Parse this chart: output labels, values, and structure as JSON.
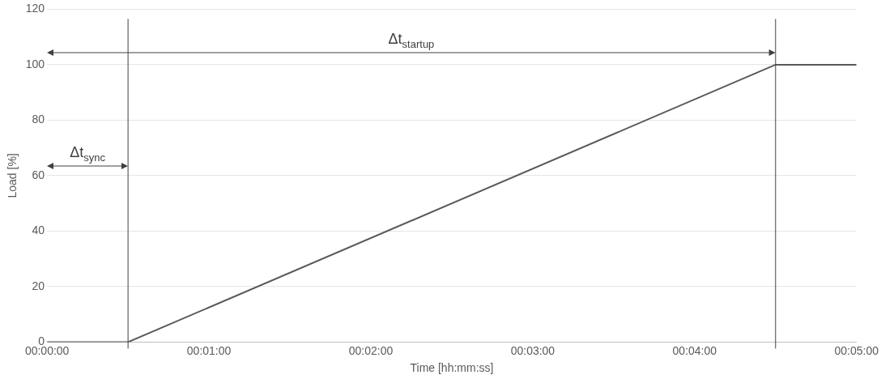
{
  "chart_data": {
    "type": "line",
    "xlabel": "Time [hh:mm:ss]",
    "ylabel": "Load [%]",
    "x": [
      0,
      0.5,
      4.5,
      5
    ],
    "series": [
      {
        "color": "#595959",
        "values": [
          0,
          0,
          100,
          100
        ]
      }
    ],
    "xlim": [
      0,
      5
    ],
    "xticks": [
      {
        "value": 0,
        "label": "00:00:00"
      },
      {
        "value": 1,
        "label": "00:01:00"
      },
      {
        "value": 2,
        "label": "00:02:00"
      },
      {
        "value": 3,
        "label": "00:03:00"
      },
      {
        "value": 4,
        "label": "00:04:00"
      },
      {
        "value": 5,
        "label": "00:05:00"
      }
    ],
    "ylim": [
      0,
      120
    ],
    "yticks": [
      0,
      20,
      40,
      60,
      80,
      100,
      120
    ],
    "grid": "y",
    "marker": "none",
    "line_style": "solid",
    "legend": false,
    "ref_lines": [
      {
        "axis": "x",
        "value": 0.5,
        "label": null,
        "color": "#404040"
      },
      {
        "axis": "x",
        "value": 4.5,
        "label": null,
        "color": "#404040"
      }
    ],
    "annotations": [
      "Δt$_{sync}$",
      "Δt$_{startup}$"
    ]
  }
}
